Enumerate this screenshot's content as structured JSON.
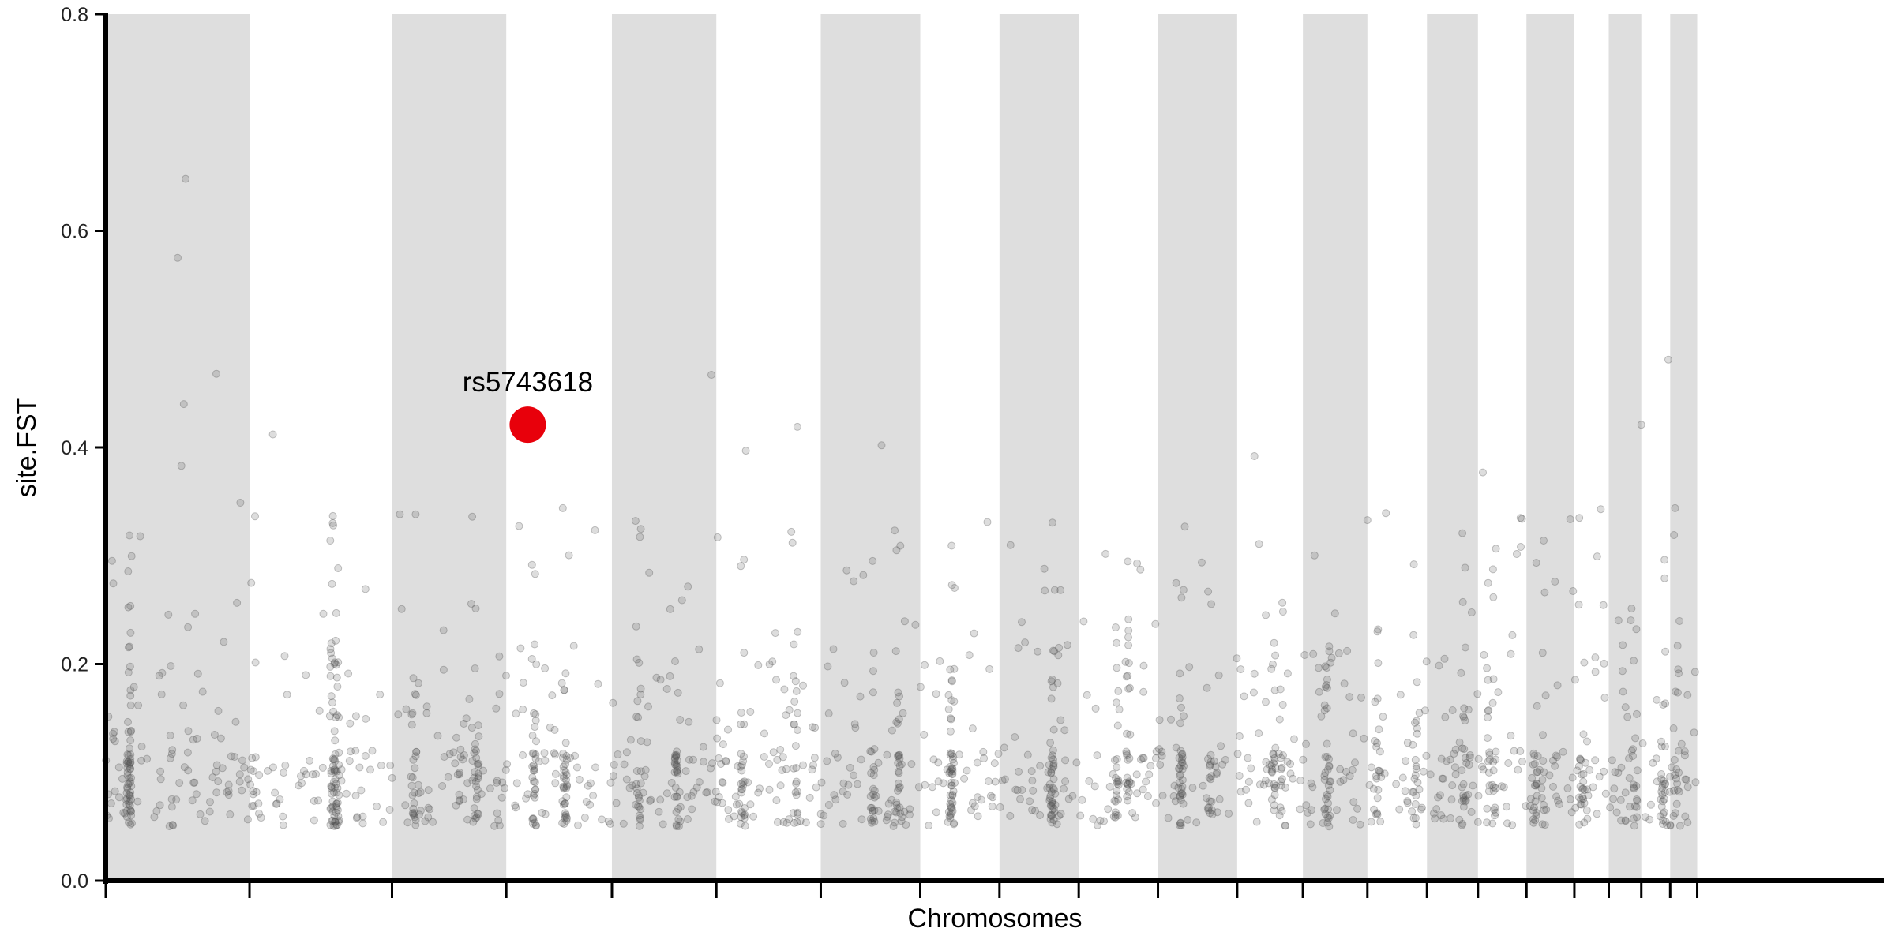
{
  "chart_data": {
    "type": "scatter",
    "title": "",
    "xlabel": "Chromosomes",
    "ylabel": "site.FST",
    "ylim": [
      0,
      0.8
    ],
    "yticks": [
      0.0,
      0.2,
      0.4,
      0.6,
      0.8
    ],
    "ytick_labels": [
      "0.0",
      "0.2",
      "0.4",
      "0.6",
      "0.8"
    ],
    "xlim": [
      0,
      2895
    ],
    "grid": false,
    "chromosome_bands": "alternating grey / white",
    "chromosome_boundaries": [
      0,
      234,
      466,
      652,
      824,
      994,
      1164,
      1326,
      1455,
      1584,
      1713,
      1842,
      1949,
      2054,
      2151,
      2234,
      2313,
      2391,
      2447,
      2500,
      2547,
      2591
    ],
    "point_color": "#555555",
    "point_opacity": 0.2,
    "highlight_color": "#e8000b",
    "highlight": {
      "label": "rs5743618",
      "x": 687,
      "y": 0.421
    },
    "colors": {
      "band": "#dedede",
      "axis": "#000000",
      "highlight": "#e8000b"
    }
  }
}
